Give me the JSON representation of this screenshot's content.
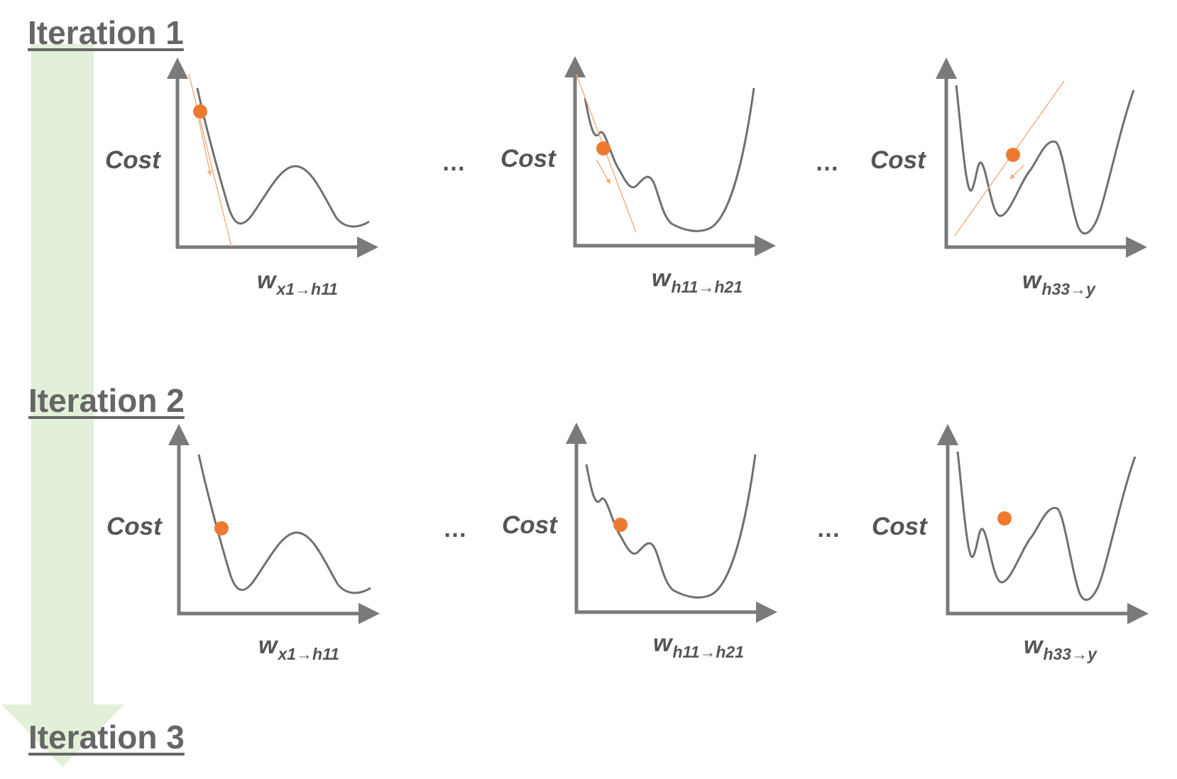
{
  "iterations": [
    {
      "heading": "Iteration 1",
      "panels": [
        {
          "cost_label": "Cost",
          "weight_symbol": "w",
          "weight_subscript": "x1→h11",
          "show_tangent": true
        },
        {
          "cost_label": "Cost",
          "weight_symbol": "w",
          "weight_subscript": "h11→h21",
          "show_tangent": true
        },
        {
          "cost_label": "Cost",
          "weight_symbol": "w",
          "weight_subscript": "h33→y",
          "show_tangent": true
        }
      ],
      "separators": [
        "…",
        "…"
      ]
    },
    {
      "heading": "Iteration 2",
      "panels": [
        {
          "cost_label": "Cost",
          "weight_symbol": "w",
          "weight_subscript": "x1→h11",
          "show_tangent": false
        },
        {
          "cost_label": "Cost",
          "weight_symbol": "w",
          "weight_subscript": "h11→h21",
          "show_tangent": false
        },
        {
          "cost_label": "Cost",
          "weight_symbol": "w",
          "weight_subscript": "h33→y",
          "show_tangent": false
        }
      ],
      "separators": [
        "…",
        "…"
      ]
    },
    {
      "heading": "Iteration 3"
    }
  ],
  "colors": {
    "axis": "#7a7a7a",
    "curve": "#707070",
    "point": "#ee7a31",
    "tangent": "#f4b183",
    "flow_arrow": "#e2f0d9",
    "text": "#555555"
  }
}
